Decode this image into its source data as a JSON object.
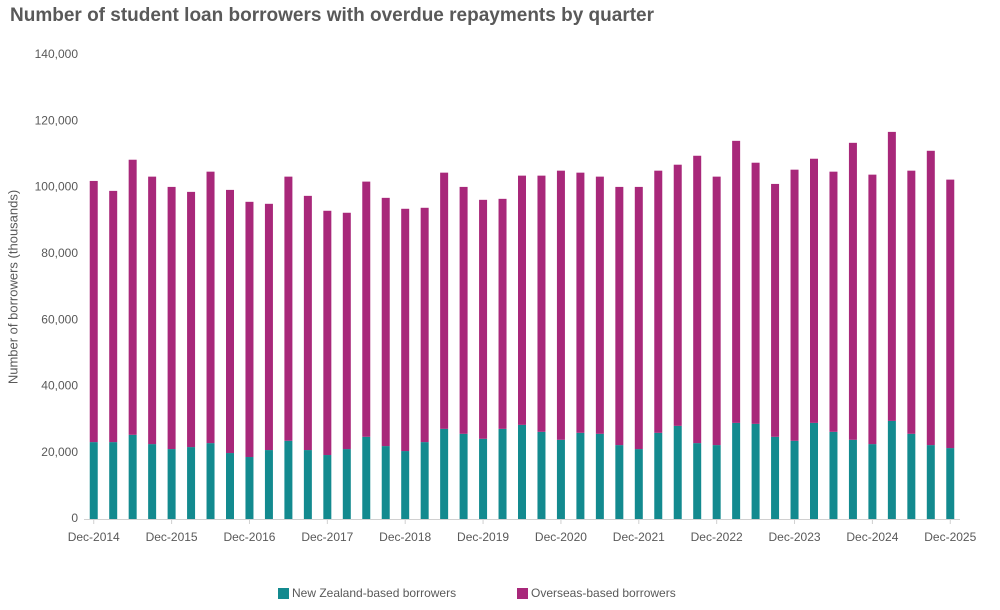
{
  "chart_data": {
    "type": "stacked-bar",
    "title": "Number of student loan borrowers with overdue repayments by quarter",
    "y_label": "Number of borrowers (thousands)",
    "categories": [
      "Dec-2014",
      null,
      null,
      null,
      "Dec-2015",
      null,
      null,
      null,
      "Dec-2016",
      null,
      null,
      null,
      "Dec-2017",
      null,
      null,
      null,
      "Dec-2018",
      null,
      null,
      null,
      "Dec-2019",
      null,
      null,
      null,
      "Dec-2020",
      null,
      null,
      null,
      "Dec-2021",
      null,
      null,
      null,
      "Dec-2022",
      null,
      null,
      null,
      "Dec-2023",
      null,
      null,
      null,
      "Dec-2024",
      null,
      null,
      null,
      "Dec-2025"
    ],
    "series": [
      {
        "name": "New Zealand-based borrowers",
        "color": "#138a8f",
        "values": [
          23200,
          23200,
          25400,
          22600,
          21100,
          21700,
          22900,
          19900,
          18700,
          20800,
          23600,
          20800,
          19300,
          21100,
          24800,
          22000,
          20500,
          23200,
          27200,
          25700,
          24200,
          27200,
          28400,
          26300,
          23900,
          26000,
          25700,
          22300,
          21100,
          26000,
          28100,
          22900,
          22300,
          29000,
          28700,
          24800,
          23600,
          29000,
          26300,
          23900,
          22600,
          29600,
          25700,
          22300,
          21400
        ]
      },
      {
        "name": "Overseas-based borrowers",
        "color": "#a8287a",
        "values": [
          78800,
          75800,
          83000,
          80700,
          79100,
          77000,
          81900,
          79400,
          77000,
          74300,
          79700,
          76700,
          73700,
          71300,
          77000,
          74900,
          73100,
          70700,
          77300,
          74500,
          72100,
          69400,
          75200,
          77300,
          81200,
          78500,
          77600,
          77900,
          79100,
          79100,
          78800,
          86700,
          81000,
          85100,
          78800,
          76300,
          81800,
          79700,
          78500,
          89600,
          81300,
          87200,
          79400,
          88800,
          81000
        ]
      }
    ],
    "ylim": [
      0,
      140000
    ],
    "yticks": [
      0,
      {
        "value": 20000,
        "label": "20,000"
      },
      {
        "value": 40000,
        "label": "40,000"
      },
      {
        "value": 60000,
        "label": "60,000"
      },
      {
        "value": 80000,
        "label": "80,000"
      },
      {
        "value": 100000,
        "label": "100,000"
      },
      {
        "value": 120000,
        "label": "120,000"
      },
      {
        "value": 140000,
        "label": "140,000"
      }
    ],
    "grid": false,
    "legend": "bottom"
  }
}
